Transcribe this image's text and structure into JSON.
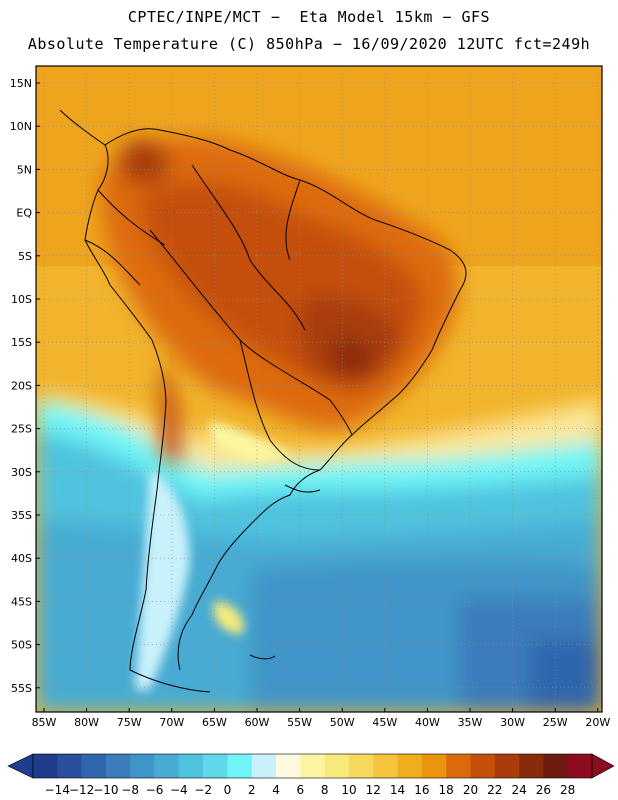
{
  "header": {
    "line1": "CPTEC/INPE/MCT −  Eta Model 15km − GFS",
    "line2": "Absolute Temperature (C) 850hPa − 16/09/2020 12UTC fct=249h"
  },
  "map": {
    "lat_ticks": [
      "15N",
      "10N",
      "5N",
      "EQ",
      "5S",
      "10S",
      "15S",
      "20S",
      "25S",
      "30S",
      "35S",
      "40S",
      "45S",
      "50S",
      "55S"
    ],
    "lon_ticks": [
      "85W",
      "80W",
      "75W",
      "70W",
      "65W",
      "60W",
      "55W",
      "50W",
      "45W",
      "40W",
      "35W",
      "30W",
      "25W",
      "20W"
    ]
  },
  "colorbar": {
    "labels": [
      "-14",
      "-12",
      "-10",
      "-8",
      "-6",
      "-4",
      "-2",
      "0",
      "2",
      "4",
      "6",
      "8",
      "10",
      "12",
      "14",
      "16",
      "18",
      "20",
      "22",
      "24",
      "26",
      "28"
    ],
    "colors": [
      "#1f3d8c",
      "#2a4f9e",
      "#2f66ad",
      "#3a7cbc",
      "#3f94c8",
      "#47abd3",
      "#4fc3de",
      "#5fd8ea",
      "#6ff5f7",
      "#c8f1fb",
      "#fdf8e0",
      "#fbf5a2",
      "#f8ea7a",
      "#f6d85c",
      "#f3c43c",
      "#efae1c",
      "#ea9410",
      "#dd6a0a",
      "#c4500a",
      "#a93c0a",
      "#8a2a0c",
      "#6e1a10",
      "#8c0b1f"
    ],
    "low_arrow_color": "#1f3d8c",
    "high_arrow_color": "#8c0b1f"
  }
}
